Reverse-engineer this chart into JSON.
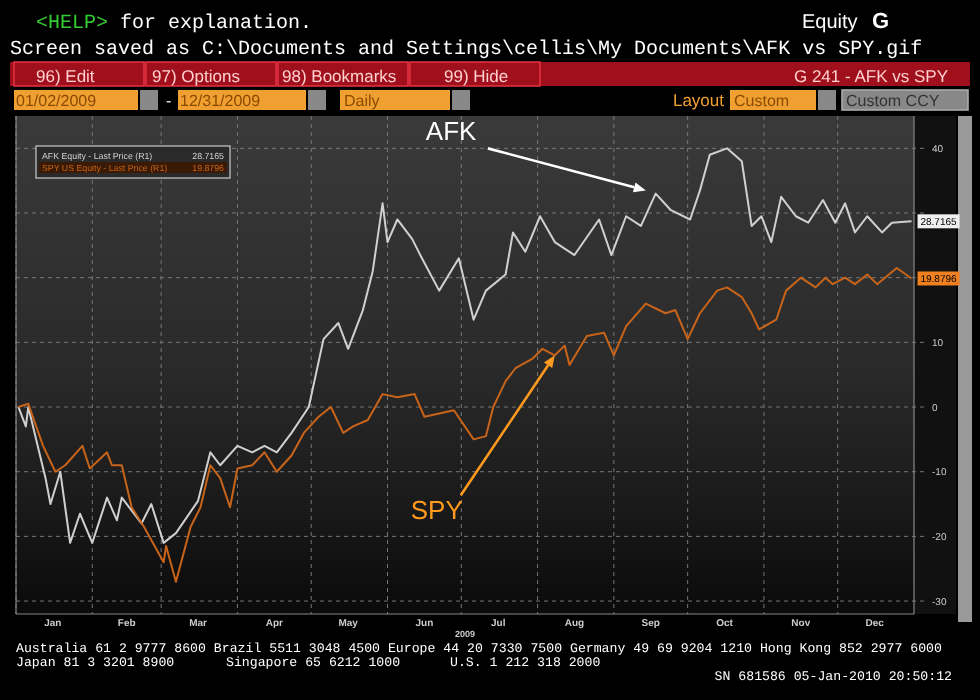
{
  "chart_data": {
    "type": "line",
    "xlabel": "2009",
    "xlim": [
      "2009-01-01",
      "2010-01-01"
    ],
    "ylim": [
      -32,
      45
    ],
    "xticks": [
      {
        "value": "2009-01-01",
        "label": null
      },
      {
        "value": "2009-02-01",
        "label": null
      },
      {
        "value": "2009-03-01",
        "label": null
      },
      {
        "value": "2009-04-01",
        "label": null
      },
      {
        "value": "2009-05-01",
        "label": null
      },
      {
        "value": "2009-06-01",
        "label": null
      },
      {
        "value": "2009-07-01",
        "label": null
      },
      {
        "value": "2009-08-01",
        "label": null
      },
      {
        "value": "2009-09-01",
        "label": null
      },
      {
        "value": "2009-10-01",
        "label": null
      },
      {
        "value": "2009-11-01",
        "label": null
      },
      {
        "value": "2009-12-01",
        "label": null
      },
      {
        "value": "2009-01-16",
        "label": "Jan"
      },
      {
        "value": "2009-02-15",
        "label": "Feb"
      },
      {
        "value": "2009-03-16",
        "label": "Mar"
      },
      {
        "value": "2009-04-16",
        "label": "Apr"
      },
      {
        "value": "2009-05-16",
        "label": "May"
      },
      {
        "value": "2009-06-16",
        "label": "Jun"
      },
      {
        "value": "2009-07-16",
        "label": "Jul"
      },
      {
        "value": "2009-08-16",
        "label": "Aug"
      },
      {
        "value": "2009-09-16",
        "label": "Sep"
      },
      {
        "value": "2009-10-16",
        "label": "Oct"
      },
      {
        "value": "2009-11-16",
        "label": "Nov"
      },
      {
        "value": "2009-12-16",
        "label": "Dec"
      }
    ],
    "yticks": [
      -30,
      -20,
      -10,
      0,
      10,
      {
        "value": 20,
        "label": null
      },
      {
        "value": 30,
        "label": null
      },
      40
    ],
    "grid": true,
    "legend": "top left",
    "series": [
      {
        "name": "AFK Equity - Last Price (R1)",
        "color": "#d0d0d0",
        "x": [
          "2009-01-02",
          "2009-01-05",
          "2009-01-06",
          "2009-01-13",
          "2009-01-15",
          "2009-01-19",
          "2009-01-23",
          "2009-01-27",
          "2009-02-01",
          "2009-02-07",
          "2009-02-11",
          "2009-02-13",
          "2009-02-21",
          "2009-02-25",
          "2009-03-02",
          "2009-03-07",
          "2009-03-16",
          "2009-03-21",
          "2009-03-25",
          "2009-04-01",
          "2009-04-07",
          "2009-04-12",
          "2009-04-17",
          "2009-04-23",
          "2009-04-30",
          "2009-05-06",
          "2009-05-12",
          "2009-05-16",
          "2009-05-22",
          "2009-05-26",
          "2009-05-30",
          "2009-06-01",
          "2009-06-05",
          "2009-06-11",
          "2009-06-15",
          "2009-06-22",
          "2009-06-30",
          "2009-07-06",
          "2009-07-11",
          "2009-07-19",
          "2009-07-22",
          "2009-07-27",
          "2009-08-02",
          "2009-08-08",
          "2009-08-16",
          "2009-08-26",
          "2009-08-31",
          "2009-09-06",
          "2009-09-12",
          "2009-09-18",
          "2009-09-24",
          "2009-10-02",
          "2009-10-06",
          "2009-10-10",
          "2009-10-17",
          "2009-10-23",
          "2009-10-27",
          "2009-10-31",
          "2009-11-04",
          "2009-11-08",
          "2009-11-14",
          "2009-11-19",
          "2009-11-25",
          "2009-11-30",
          "2009-12-04",
          "2009-12-08",
          "2009-12-13",
          "2009-12-19",
          "2009-12-23",
          "2009-12-31"
        ],
        "values": [
          0,
          -3,
          0,
          -11,
          -15,
          -10,
          -21,
          -16.5,
          -21,
          -14,
          -17.5,
          -14,
          -18,
          -15,
          -21,
          -19.5,
          -14.5,
          -7,
          -9,
          -6,
          -7,
          -6,
          -7,
          -4,
          0,
          10.5,
          13,
          9,
          15,
          21,
          31.5,
          25.5,
          29,
          26,
          23,
          18,
          23,
          13.5,
          18,
          20.5,
          27,
          24,
          29.5,
          25.5,
          23.5,
          29,
          23.5,
          29.5,
          28,
          33,
          30.5,
          29,
          33.5,
          39,
          40,
          38,
          28,
          29.5,
          25.5,
          32.5,
          29.5,
          28.5,
          32,
          28.5,
          31.5,
          27,
          29.5,
          27,
          28.5,
          28.7165
        ]
      },
      {
        "name": "SPY US Equity - Last Price (R1)",
        "color": "#c8641a",
        "x": [
          "2009-01-02",
          "2009-01-06",
          "2009-01-12",
          "2009-01-17",
          "2009-01-21",
          "2009-01-28",
          "2009-01-31",
          "2009-02-07",
          "2009-02-09",
          "2009-02-13",
          "2009-02-17",
          "2009-02-22",
          "2009-03-02",
          "2009-03-03",
          "2009-03-07",
          "2009-03-13",
          "2009-03-17",
          "2009-03-21",
          "2009-03-25",
          "2009-03-29",
          "2009-04-01",
          "2009-04-07",
          "2009-04-12",
          "2009-04-17",
          "2009-04-23",
          "2009-04-28",
          "2009-05-04",
          "2009-05-09",
          "2009-05-14",
          "2009-05-18",
          "2009-05-24",
          "2009-05-30",
          "2009-06-05",
          "2009-06-12",
          "2009-06-16",
          "2009-06-22",
          "2009-06-28",
          "2009-07-06",
          "2009-07-11",
          "2009-07-14",
          "2009-07-19",
          "2009-07-23",
          "2009-07-30",
          "2009-08-03",
          "2009-08-08",
          "2009-08-12",
          "2009-08-14",
          "2009-08-21",
          "2009-08-28",
          "2009-09-01",
          "2009-09-06",
          "2009-09-14",
          "2009-09-22",
          "2009-09-26",
          "2009-10-01",
          "2009-10-06",
          "2009-10-13",
          "2009-10-17",
          "2009-10-23",
          "2009-10-27",
          "2009-10-30",
          "2009-11-06",
          "2009-11-10",
          "2009-11-16",
          "2009-11-22",
          "2009-11-26",
          "2009-11-29",
          "2009-12-04",
          "2009-12-08",
          "2009-12-13",
          "2009-12-17",
          "2009-12-25",
          "2009-12-31"
        ],
        "values": [
          0,
          0.5,
          -6,
          -10,
          -9,
          -6,
          -9.5,
          -7,
          -9,
          -9,
          -15.5,
          -18.5,
          -24,
          -21.5,
          -27,
          -18.5,
          -15.5,
          -9,
          -11,
          -15.5,
          -9.5,
          -9,
          -7,
          -10,
          -7.5,
          -4,
          -1.5,
          0,
          -4,
          -3,
          -2,
          2,
          1.5,
          2,
          -1.5,
          -1,
          -0.5,
          -5,
          -4.5,
          0,
          4,
          6,
          7.5,
          9,
          8,
          9.5,
          6.5,
          11,
          11.5,
          8,
          12.5,
          16,
          14.5,
          15,
          10.5,
          14.5,
          18,
          18.5,
          17,
          14.5,
          12,
          13.5,
          18,
          20,
          18.5,
          20,
          19,
          20,
          19,
          20.5,
          19,
          21.5,
          19.8796
        ]
      }
    ],
    "annotations": [
      "<HELP>",
      "for explanation.",
      "Equity",
      "G",
      "Screen saved as C:\\Documents and Settings\\cellis\\My Documents\\AFK vs SPY.gif",
      "96) Edit",
      "97) Options",
      "98) Bookmarks",
      "99) Hide",
      "G 241 - AFK vs SPY",
      "01/02/2009",
      "-",
      "12/31/2009",
      "Daily",
      "Layout",
      "Custom",
      "Custom CCY",
      "Australia 61 2 9777 8600 Brazil 5511 3048 4500 Europe 44 20 7330 7500 Germany 49 69 9204 1210 Hong Kong 852 2977 6000",
      "Japan 81 3 3201 8900",
      "Singapore 65 6212 1000",
      "U.S. 1 212 318 2000",
      "SN 681586 05-Jan-2010 20:50:12",
      {
        "text": "AFK",
        "x": "2009-09-14",
        "y": 33.5
      },
      {
        "text": "SPY",
        "x": "2009-08-08",
        "y": 8
      },
      {
        "text": "28.7165",
        "x": "2009-12-31",
        "y": 28.7165
      },
      {
        "text": "19.8796",
        "x": "2009-12-31",
        "y": 19.8796
      }
    ]
  }
}
